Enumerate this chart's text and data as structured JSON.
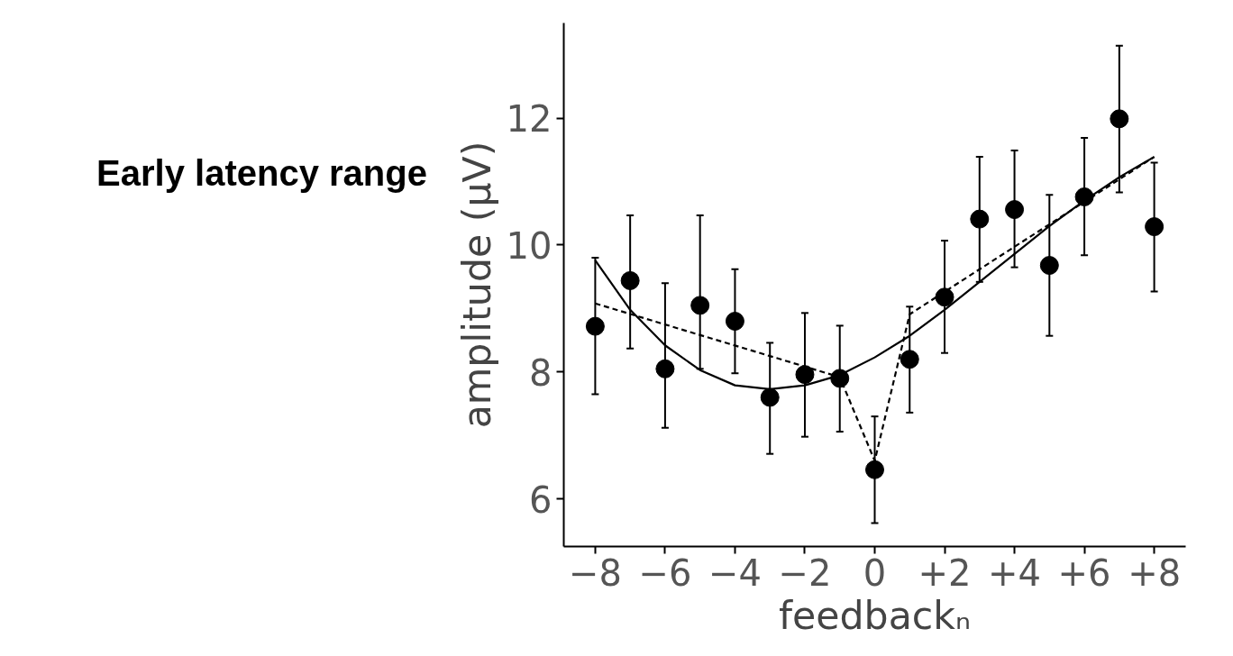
{
  "chart_data": {
    "type": "scatter",
    "title": "Early latency range",
    "xlabel": "feedbackₙ",
    "ylabel": "amplitude (µV)",
    "xlim": [
      -8.9,
      8.9
    ],
    "ylim": [
      5.25,
      13.5
    ],
    "xticks": [
      {
        "value": -8,
        "label": "−8"
      },
      {
        "value": -6,
        "label": "−6"
      },
      {
        "value": -4,
        "label": "−4"
      },
      {
        "value": -2,
        "label": "−2"
      },
      0,
      {
        "value": 2,
        "label": "+2"
      },
      {
        "value": 4,
        "label": "+4"
      },
      {
        "value": 6,
        "label": "+6"
      },
      {
        "value": 8,
        "label": "+8"
      }
    ],
    "yticks": [
      6,
      8,
      10,
      12
    ],
    "grid": false,
    "series": [
      {
        "color": "#000000",
        "marker": "circle",
        "x": [
          -8,
          -7,
          -6,
          -5,
          -4,
          -3,
          -2,
          -1,
          0,
          1,
          2,
          3,
          4,
          5,
          6,
          7,
          8
        ],
        "values": [
          8.72,
          9.44,
          8.05,
          9.05,
          8.8,
          7.6,
          7.96,
          7.9,
          6.46,
          8.2,
          9.18,
          10.41,
          10.56,
          9.68,
          10.76,
          11.99,
          10.29
        ],
        "errors": [
          [
            7.65,
            9.8
          ],
          [
            8.37,
            10.47
          ],
          [
            7.12,
            9.4
          ],
          [
            8.05,
            10.47
          ],
          [
            7.98,
            9.62
          ],
          [
            6.71,
            8.46
          ],
          [
            6.98,
            8.93
          ],
          [
            7.06,
            8.73
          ],
          [
            5.62,
            7.3
          ],
          [
            7.36,
            9.03
          ],
          [
            8.3,
            10.07
          ],
          [
            9.42,
            11.39
          ],
          [
            9.65,
            11.49
          ],
          [
            8.57,
            10.79
          ],
          [
            9.84,
            11.69
          ],
          [
            10.83,
            13.14
          ],
          [
            9.27,
            11.3
          ]
        ]
      },
      {
        "type": "line",
        "color": "#000000",
        "line_style": "solid",
        "x": [
          -8,
          -7,
          -6,
          -5,
          -4,
          -3,
          -2,
          -1,
          0,
          1,
          2,
          3,
          4,
          5,
          6,
          7,
          8
        ],
        "values": [
          9.76,
          8.98,
          8.42,
          8.03,
          7.79,
          7.73,
          7.79,
          7.95,
          8.23,
          8.57,
          8.98,
          9.42,
          9.86,
          10.3,
          10.7,
          11.07,
          11.39
        ]
      },
      {
        "type": "line",
        "color": "#000000",
        "line_style": "dashed",
        "x": [
          -8,
          -1,
          0,
          1,
          8
        ],
        "values": [
          9.08,
          7.92,
          6.6,
          8.91,
          11.39
        ]
      }
    ]
  }
}
